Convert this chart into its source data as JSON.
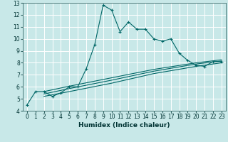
{
  "xlabel": "Humidex (Indice chaleur)",
  "bg_color": "#c8e8e8",
  "grid_color": "#ffffff",
  "line_color": "#006666",
  "xlim": [
    -0.5,
    23.5
  ],
  "ylim": [
    4,
    13
  ],
  "xticks": [
    0,
    1,
    2,
    3,
    4,
    5,
    6,
    7,
    8,
    9,
    10,
    11,
    12,
    13,
    14,
    15,
    16,
    17,
    18,
    19,
    20,
    21,
    22,
    23
  ],
  "yticks": [
    4,
    5,
    6,
    7,
    8,
    9,
    10,
    11,
    12,
    13
  ],
  "main_x": [
    0,
    1,
    2,
    3,
    4,
    5,
    6,
    7,
    8,
    9,
    10,
    11,
    12,
    13,
    14,
    15,
    16,
    17,
    18,
    19,
    20,
    21,
    22,
    23
  ],
  "main_y": [
    4.5,
    5.6,
    5.6,
    5.2,
    5.5,
    6.0,
    6.0,
    7.5,
    9.5,
    12.8,
    12.4,
    10.6,
    11.4,
    10.8,
    10.8,
    10.0,
    9.8,
    10.0,
    8.8,
    8.2,
    7.8,
    7.7,
    8.1,
    8.1
  ],
  "line1_x": [
    2,
    5,
    10,
    15,
    20,
    23
  ],
  "line1_y": [
    5.2,
    5.6,
    6.3,
    7.1,
    7.7,
    8.0
  ],
  "line2_x": [
    2,
    5,
    10,
    15,
    20,
    23
  ],
  "line2_y": [
    5.4,
    5.85,
    6.55,
    7.3,
    7.9,
    8.15
  ],
  "line3_x": [
    2,
    5,
    10,
    15,
    20,
    23
  ],
  "line3_y": [
    5.6,
    6.05,
    6.75,
    7.45,
    8.0,
    8.25
  ],
  "tick_fontsize": 5.5,
  "xlabel_fontsize": 6.5
}
